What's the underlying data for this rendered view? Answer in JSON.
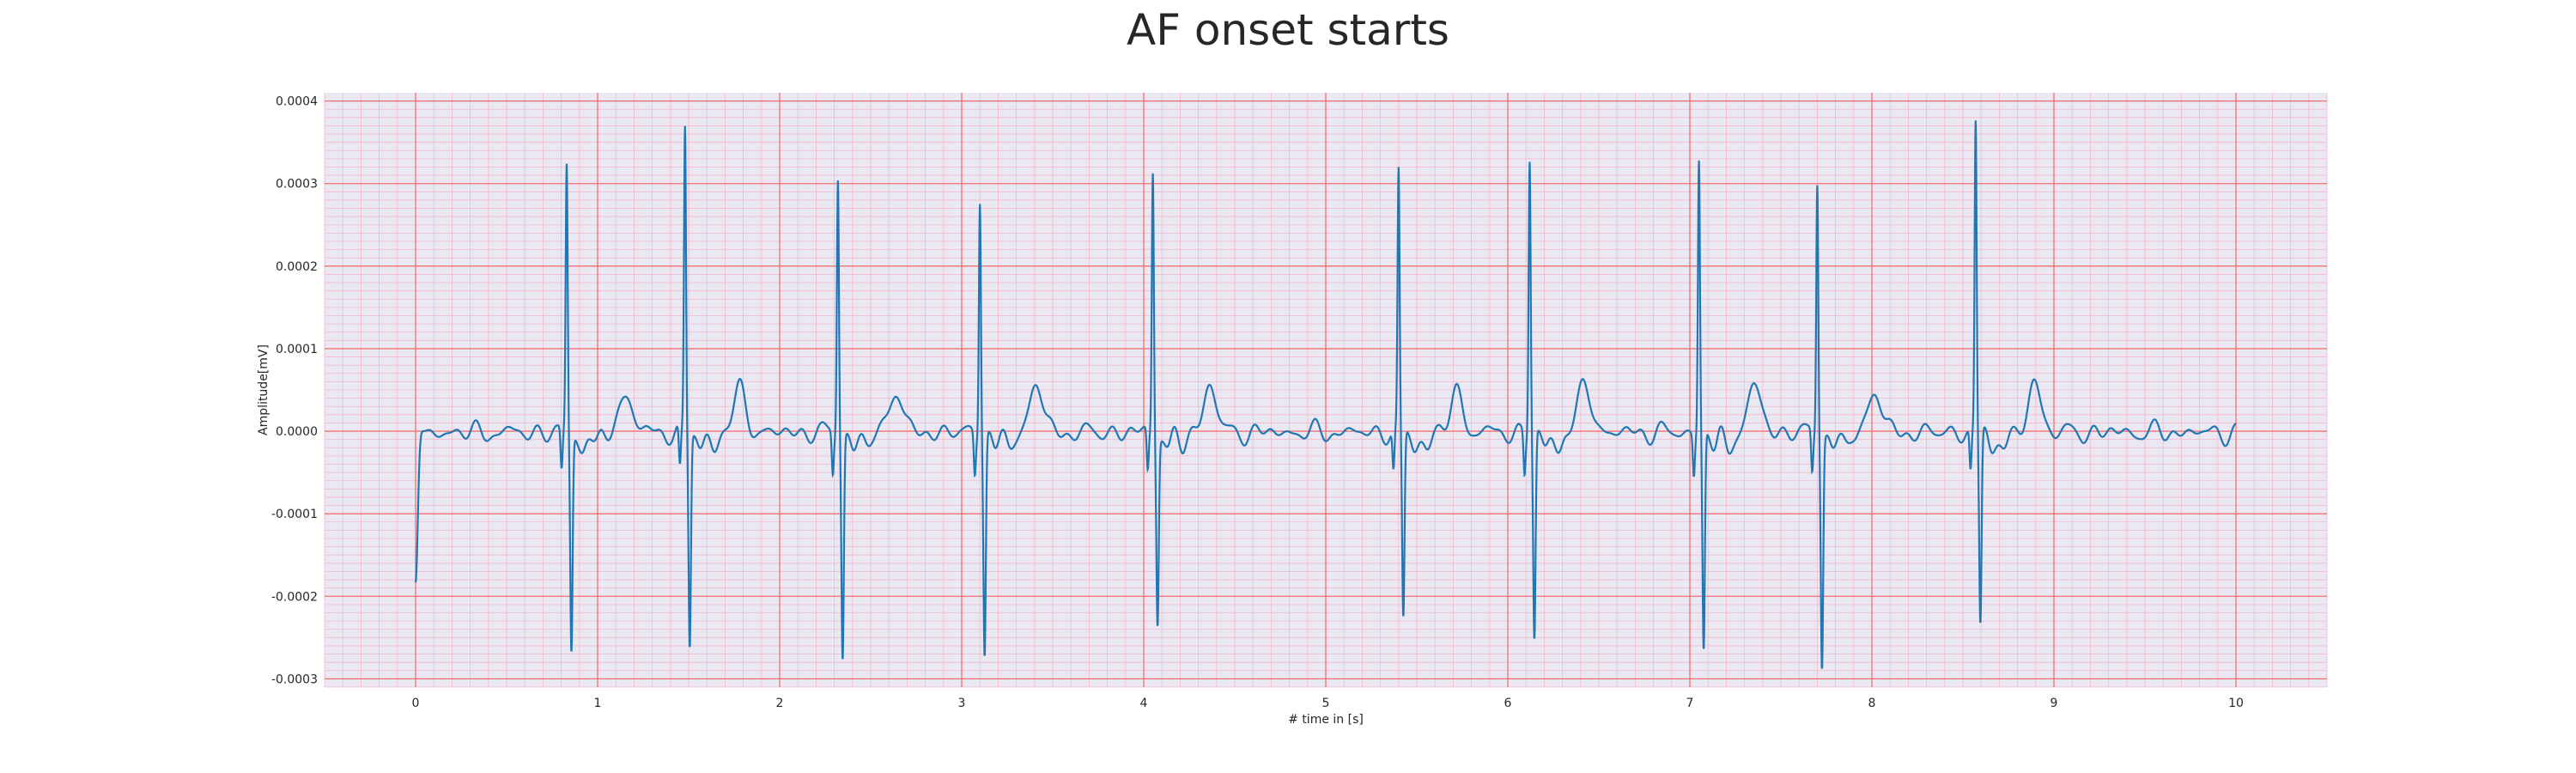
{
  "chart_data": {
    "type": "line",
    "title": "AF onset starts",
    "xlabel": "# time in [s]",
    "ylabel": "Amplitude[mV]",
    "xlim": [
      -0.5,
      10.5
    ],
    "ylim": [
      -0.00031,
      0.00041
    ],
    "x_ticks": [
      "0",
      "1",
      "2",
      "3",
      "4",
      "5",
      "6",
      "7",
      "8",
      "9",
      "10"
    ],
    "y_ticks": [
      "-0.0003",
      "-0.0002",
      "-0.0001",
      "0.0000",
      "0.0001",
      "0.0002",
      "0.0003",
      "0.0004"
    ],
    "grid": true,
    "colors": {
      "background": "#eae8f2",
      "major_grid": "#f27070",
      "minor_grid": "#f5b8c8",
      "line": "#1f77b4",
      "text": "#262626"
    },
    "series": [
      {
        "start": -0.000182,
        "r_peaks": [
          {
            "t": 0.83,
            "r": 0.000322,
            "s": -0.000265
          },
          {
            "t": 1.48,
            "r": 0.000368,
            "s": -0.000258
          },
          {
            "t": 2.32,
            "r": 0.000314,
            "s": -0.00027
          },
          {
            "t": 3.1,
            "r": 0.00029,
            "s": -0.000266
          },
          {
            "t": 4.05,
            "r": 0.00032,
            "s": -0.000225
          },
          {
            "t": 5.4,
            "r": 0.000312,
            "s": -0.000228
          },
          {
            "t": 6.12,
            "r": 0.000334,
            "s": -0.000253
          },
          {
            "t": 7.05,
            "r": 0.000332,
            "s": -0.000267
          },
          {
            "t": 7.7,
            "r": 0.000309,
            "s": -0.000277
          },
          {
            "t": 8.57,
            "r": 0.000376,
            "s": -0.000236
          }
        ],
        "x_end": 10.0
      }
    ]
  }
}
